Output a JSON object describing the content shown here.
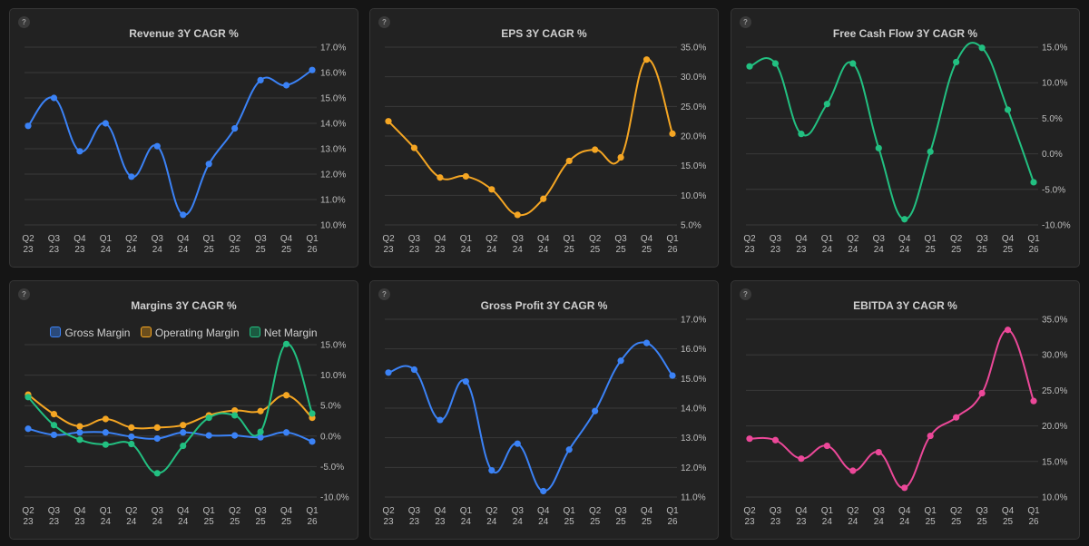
{
  "help_label": "?",
  "chart_data": [
    {
      "id": "revenue",
      "type": "line",
      "title": "Revenue 3Y CAGR %",
      "categories": [
        [
          "Q2",
          "23"
        ],
        [
          "Q3",
          "23"
        ],
        [
          "Q4",
          "23"
        ],
        [
          "Q1",
          "24"
        ],
        [
          "Q2",
          "24"
        ],
        [
          "Q3",
          "24"
        ],
        [
          "Q4",
          "24"
        ],
        [
          "Q1",
          "25"
        ],
        [
          "Q2",
          "25"
        ],
        [
          "Q3",
          "25"
        ],
        [
          "Q4",
          "25"
        ],
        [
          "Q1",
          "26"
        ]
      ],
      "ylim": [
        10,
        17
      ],
      "yticks": [
        10,
        11,
        12,
        13,
        14,
        15,
        16,
        17
      ],
      "ytick_labels": [
        "10.0%",
        "11.0%",
        "12.0%",
        "13.0%",
        "14.0%",
        "15.0%",
        "16.0%",
        "17.0%"
      ],
      "series": [
        {
          "color": "#3b82f6",
          "values": [
            13.9,
            15.0,
            12.9,
            14.0,
            11.9,
            13.1,
            10.4,
            12.4,
            13.8,
            15.7,
            15.5,
            16.1
          ]
        }
      ]
    },
    {
      "id": "eps",
      "type": "line",
      "title": "EPS 3Y CAGR %",
      "categories": [
        [
          "Q2",
          "23"
        ],
        [
          "Q3",
          "23"
        ],
        [
          "Q4",
          "23"
        ],
        [
          "Q1",
          "24"
        ],
        [
          "Q2",
          "24"
        ],
        [
          "Q3",
          "24"
        ],
        [
          "Q4",
          "24"
        ],
        [
          "Q1",
          "25"
        ],
        [
          "Q2",
          "25"
        ],
        [
          "Q3",
          "25"
        ],
        [
          "Q4",
          "25"
        ],
        [
          "Q1",
          "26"
        ]
      ],
      "ylim": [
        5,
        35
      ],
      "yticks": [
        5,
        10,
        15,
        20,
        25,
        30,
        35
      ],
      "ytick_labels": [
        "5.0%",
        "10.0%",
        "15.0%",
        "20.0%",
        "25.0%",
        "30.0%",
        "35.0%"
      ],
      "series": [
        {
          "color": "#f5a623",
          "values": [
            22.5,
            18.0,
            13.0,
            13.2,
            11.0,
            6.7,
            9.4,
            15.8,
            17.7,
            16.4,
            32.9,
            20.4
          ]
        }
      ]
    },
    {
      "id": "fcf",
      "type": "line",
      "title": "Free Cash Flow 3Y CAGR %",
      "categories": [
        [
          "Q2",
          "23"
        ],
        [
          "Q3",
          "23"
        ],
        [
          "Q4",
          "23"
        ],
        [
          "Q1",
          "24"
        ],
        [
          "Q2",
          "24"
        ],
        [
          "Q3",
          "24"
        ],
        [
          "Q4",
          "24"
        ],
        [
          "Q1",
          "25"
        ],
        [
          "Q2",
          "25"
        ],
        [
          "Q3",
          "25"
        ],
        [
          "Q4",
          "25"
        ],
        [
          "Q1",
          "26"
        ]
      ],
      "ylim": [
        -10,
        15
      ],
      "yticks": [
        -10,
        -5,
        0,
        5,
        10,
        15
      ],
      "ytick_labels": [
        "-10.0%",
        "-5.0%",
        "0.0%",
        "5.0%",
        "10.0%",
        "15.0%"
      ],
      "series": [
        {
          "color": "#22c081",
          "values": [
            12.3,
            12.7,
            2.8,
            7.0,
            12.7,
            0.8,
            -9.2,
            0.3,
            12.9,
            14.9,
            6.2,
            -4.0
          ]
        }
      ]
    },
    {
      "id": "margins",
      "type": "line",
      "title": "Margins 3Y CAGR %",
      "categories": [
        [
          "Q2",
          "23"
        ],
        [
          "Q3",
          "23"
        ],
        [
          "Q4",
          "23"
        ],
        [
          "Q1",
          "24"
        ],
        [
          "Q2",
          "24"
        ],
        [
          "Q3",
          "24"
        ],
        [
          "Q4",
          "24"
        ],
        [
          "Q1",
          "25"
        ],
        [
          "Q2",
          "25"
        ],
        [
          "Q3",
          "25"
        ],
        [
          "Q4",
          "25"
        ],
        [
          "Q1",
          "26"
        ]
      ],
      "ylim": [
        -10,
        15
      ],
      "yticks": [
        -10,
        -5,
        0,
        5,
        10,
        15
      ],
      "ytick_labels": [
        "-10.0%",
        "-5.0%",
        "0.0%",
        "5.0%",
        "10.0%",
        "15.0%"
      ],
      "legend": "top",
      "series": [
        {
          "name": "Gross Margin",
          "color": "#3b82f6",
          "values": [
            1.2,
            0.2,
            0.6,
            0.6,
            -0.1,
            -0.4,
            0.6,
            0.1,
            0.1,
            -0.2,
            0.6,
            -0.9
          ]
        },
        {
          "name": "Operating Margin",
          "color": "#f5a623",
          "values": [
            6.8,
            3.6,
            1.6,
            2.8,
            1.4,
            1.4,
            1.8,
            3.4,
            4.2,
            4.1,
            6.7,
            3.0
          ]
        },
        {
          "name": "Net Margin",
          "color": "#22c081",
          "values": [
            6.4,
            1.8,
            -0.6,
            -1.4,
            -1.3,
            -6.1,
            -1.6,
            3.0,
            3.4,
            0.7,
            15.1,
            3.7
          ]
        }
      ]
    },
    {
      "id": "grossprofit",
      "type": "line",
      "title": "Gross Profit 3Y CAGR %",
      "categories": [
        [
          "Q2",
          "23"
        ],
        [
          "Q3",
          "23"
        ],
        [
          "Q4",
          "23"
        ],
        [
          "Q1",
          "24"
        ],
        [
          "Q2",
          "24"
        ],
        [
          "Q3",
          "24"
        ],
        [
          "Q4",
          "24"
        ],
        [
          "Q1",
          "25"
        ],
        [
          "Q2",
          "25"
        ],
        [
          "Q3",
          "25"
        ],
        [
          "Q4",
          "25"
        ],
        [
          "Q1",
          "26"
        ]
      ],
      "ylim": [
        11,
        17
      ],
      "yticks": [
        11,
        12,
        13,
        14,
        15,
        16,
        17
      ],
      "ytick_labels": [
        "11.0%",
        "12.0%",
        "13.0%",
        "14.0%",
        "15.0%",
        "16.0%",
        "17.0%"
      ],
      "series": [
        {
          "color": "#3b82f6",
          "values": [
            15.2,
            15.3,
            13.6,
            14.9,
            11.9,
            12.8,
            11.2,
            12.6,
            13.9,
            15.6,
            16.2,
            15.1
          ]
        }
      ]
    },
    {
      "id": "ebitda",
      "type": "line",
      "title": "EBITDA 3Y CAGR %",
      "categories": [
        [
          "Q2",
          "23"
        ],
        [
          "Q3",
          "23"
        ],
        [
          "Q4",
          "23"
        ],
        [
          "Q1",
          "24"
        ],
        [
          "Q2",
          "24"
        ],
        [
          "Q3",
          "24"
        ],
        [
          "Q4",
          "24"
        ],
        [
          "Q1",
          "25"
        ],
        [
          "Q2",
          "25"
        ],
        [
          "Q3",
          "25"
        ],
        [
          "Q4",
          "25"
        ],
        [
          "Q1",
          "26"
        ]
      ],
      "ylim": [
        10,
        35
      ],
      "yticks": [
        10,
        15,
        20,
        25,
        30,
        35
      ],
      "ytick_labels": [
        "10.0%",
        "15.0%",
        "20.0%",
        "25.0%",
        "30.0%",
        "35.0%"
      ],
      "series": [
        {
          "color": "#ec4899",
          "values": [
            18.2,
            18.0,
            15.4,
            17.2,
            13.7,
            16.3,
            11.3,
            18.6,
            21.2,
            24.6,
            33.5,
            23.5
          ]
        }
      ]
    }
  ]
}
